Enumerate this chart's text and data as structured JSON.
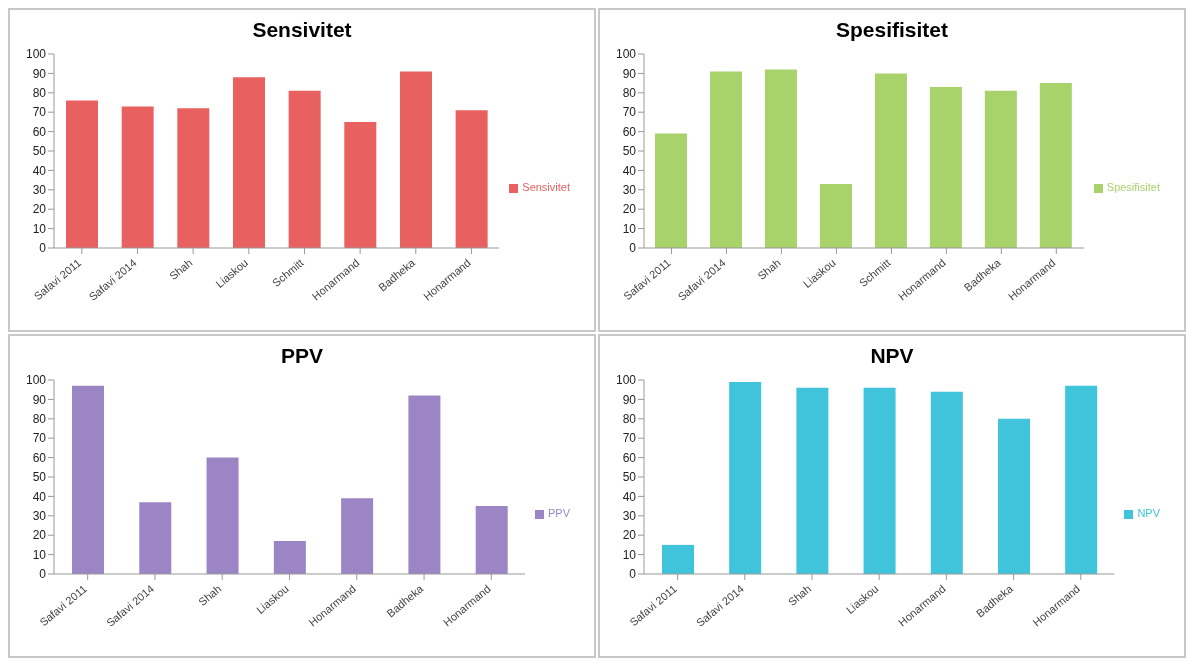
{
  "chart_data": [
    {
      "type": "bar",
      "title": "Sensivitet",
      "categories": [
        "Safavi 2011",
        "Safavi 2014",
        "Shah",
        "Liaskou",
        "Schmitt",
        "Honarmand",
        "Badheka",
        "Honarmand"
      ],
      "series": [
        {
          "name": "Sensivitet",
          "color": "#e8605f",
          "values": [
            76,
            73,
            72,
            88,
            81,
            65,
            91,
            71
          ]
        }
      ],
      "ylim": [
        0,
        100
      ],
      "yticks": [
        0,
        10,
        20,
        30,
        40,
        50,
        60,
        70,
        80,
        90,
        100
      ],
      "grid": false,
      "legend": "right"
    },
    {
      "type": "bar",
      "title": "Spesifisitet",
      "categories": [
        "Safavi 2011",
        "Safavi 2014",
        "Shah",
        "Liaskou",
        "Schmitt",
        "Honarmand",
        "Badheka",
        "Honarmand"
      ],
      "series": [
        {
          "name": "Spesifisitet",
          "color": "#a8d26a",
          "values": [
            59,
            91,
            92,
            33,
            90,
            83,
            81,
            85
          ]
        }
      ],
      "ylim": [
        0,
        100
      ],
      "yticks": [
        0,
        10,
        20,
        30,
        40,
        50,
        60,
        70,
        80,
        90,
        100
      ],
      "grid": false,
      "legend": "right"
    },
    {
      "type": "bar",
      "title": "PPV",
      "categories": [
        "Safavi 2011",
        "Safavi 2014",
        "Shah",
        "Liaskou",
        "Honarmand",
        "Badheka",
        "Honarmand"
      ],
      "series": [
        {
          "name": "PPV",
          "color": "#9b85c4",
          "values": [
            97,
            37,
            60,
            17,
            39,
            92,
            35
          ]
        }
      ],
      "ylim": [
        0,
        100
      ],
      "yticks": [
        0,
        10,
        20,
        30,
        40,
        50,
        60,
        70,
        80,
        90,
        100
      ],
      "grid": false,
      "legend": "right"
    },
    {
      "type": "bar",
      "title": "NPV",
      "categories": [
        "Safavi 2011",
        "Safavi 2014",
        "Shah",
        "Liaskou",
        "Honarmand",
        "Badheka",
        "Honarmand"
      ],
      "series": [
        {
          "name": "NPV",
          "color": "#3fc4dc",
          "values": [
            15,
            99,
            96,
            96,
            94,
            80,
            97
          ]
        }
      ],
      "ylim": [
        0,
        100
      ],
      "yticks": [
        0,
        10,
        20,
        30,
        40,
        50,
        60,
        70,
        80,
        90,
        100
      ],
      "grid": false,
      "legend": "right"
    }
  ]
}
